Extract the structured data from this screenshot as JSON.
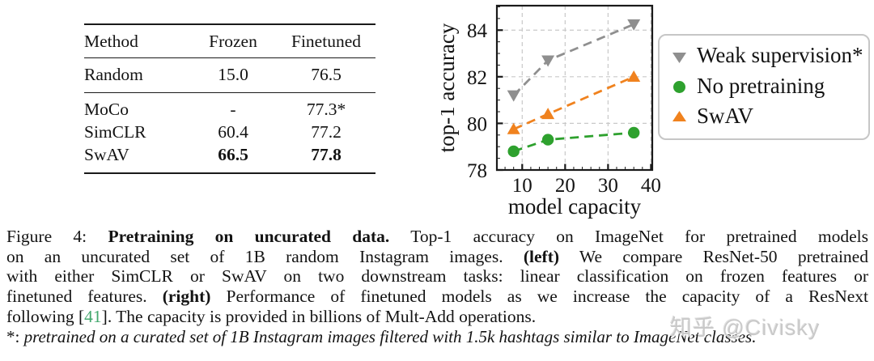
{
  "table": {
    "headers": [
      "Method",
      "Frozen",
      "Finetuned"
    ],
    "rows": [
      {
        "method": "Random",
        "frozen": "15.0",
        "finetuned": "76.5"
      },
      {
        "method": "MoCo",
        "frozen": "-",
        "finetuned": "77.3*"
      },
      {
        "method": "SimCLR",
        "frozen": "60.4",
        "finetuned": "77.2"
      },
      {
        "method": "SwAV",
        "frozen": "66.5",
        "finetuned": "77.8"
      }
    ],
    "bold_row": "SwAV"
  },
  "chart_data": {
    "type": "line",
    "x": [
      8,
      16,
      36
    ],
    "series": [
      {
        "name": "Weak supervision*",
        "marker": "triangle-down",
        "color": "#8f8f8f",
        "values": [
          81.2,
          82.7,
          84.25
        ]
      },
      {
        "name": "No pretraining",
        "marker": "circle",
        "color": "#2ea12e",
        "values": [
          78.8,
          79.3,
          79.6
        ]
      },
      {
        "name": "SwAV",
        "marker": "triangle-up",
        "color": "#f0821e",
        "values": [
          79.75,
          80.4,
          82.0
        ]
      }
    ],
    "xlabel": "model capacity",
    "ylabel": "top-1 accuracy",
    "xlim": [
      4.1,
      40.3
    ],
    "ylim": [
      78,
      85.05
    ],
    "xticks": [
      10,
      20,
      30,
      40
    ],
    "yticks": [
      78,
      80,
      82,
      84
    ],
    "xtick_minor_step": 2,
    "ytick_minor_step": 0.5,
    "grid": true,
    "grid_color": "#c9c9c9",
    "line_style": "dashed",
    "legend_position": "right"
  },
  "caption": {
    "line1": {
      "t1": "Figure 4:",
      "b": "Pretraining on uncurated data.",
      "t2": "Top-1 accuracy on ImageNet for pretrained models"
    },
    "line2": {
      "t1": "on an uncurated set of 1B random Instagram images.",
      "b": "(left)",
      "t2": "We compare ResNet-50 pretrained"
    },
    "line3": {
      "t1": "with either SimCLR or SwAV on two downstream tasks: linear classification on frozen features or"
    },
    "line4": {
      "t1": "finetuned features.",
      "b": "(right)",
      "t2": "Performance of finetuned models as we increase the capacity of a ResNext"
    },
    "line5": {
      "t1": "following [",
      "cite": "41",
      "t2": "]. The capacity is provided in billions of Mult-Add operations."
    }
  },
  "footnote": {
    "marker": "*:",
    "text": "pretrained on a curated set of 1B Instagram images filtered with 1.5k hashtags similar to ImageNet classes."
  },
  "watermark": {
    "text": "知乎 @Civisky"
  },
  "colors": {
    "citation_green": "#44a96e",
    "axis_black": "#1a1a1a",
    "legend_border": "#c6c6c6",
    "watermark_gray": "#c9c9c9"
  }
}
